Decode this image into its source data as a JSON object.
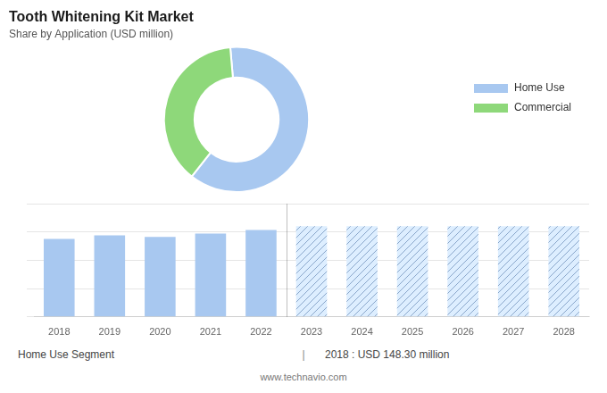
{
  "chart_data": [
    {
      "type": "doughnut",
      "title": "Tooth Whitening Kit Market",
      "subtitle": "Share by Application (USD million)",
      "categories": [
        "Home Use",
        "Commercial"
      ],
      "values": [
        62,
        38
      ],
      "colors": [
        "#a8c8f0",
        "#8ed87a"
      ],
      "legend": "right"
    },
    {
      "type": "bar",
      "categories": [
        "2018",
        "2019",
        "2020",
        "2021",
        "2022",
        "2023",
        "2024",
        "2025",
        "2026",
        "2027",
        "2028"
      ],
      "series": [
        {
          "color": "#a8c8f0",
          "values": [
            148,
            155,
            152,
            158,
            165,
            null,
            null,
            null,
            null,
            null,
            null
          ]
        },
        {
          "color": "#ddeeff",
          "values": [
            null,
            null,
            null,
            null,
            null,
            172,
            172,
            172,
            172,
            172,
            172
          ]
        }
      ],
      "ylim": [
        0,
        215
      ],
      "yticks": [
        0,
        53.75,
        107.5,
        161.25,
        215
      ],
      "grid": true,
      "tick_labels": "x",
      "annotations": [
        "Home Use Segment",
        "|",
        "2018 : USD 148.30 million",
        "www.technavio.com"
      ]
    }
  ]
}
